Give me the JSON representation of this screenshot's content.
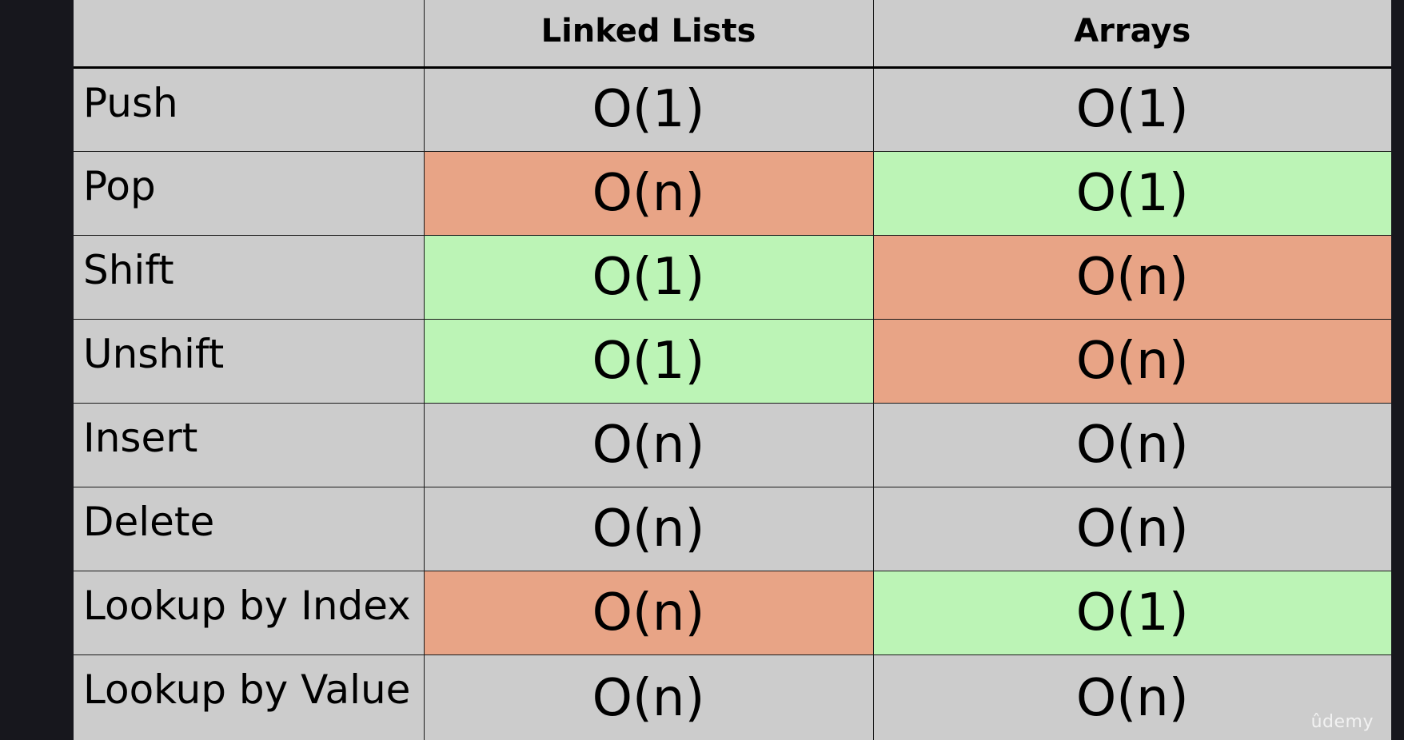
{
  "table": {
    "headers": [
      "",
      "Linked Lists",
      "Arrays"
    ],
    "rows": [
      {
        "operation": "Push",
        "linked_lists": "O(1)",
        "arrays": "O(1)",
        "ll_status": "neutral",
        "arr_status": "neutral"
      },
      {
        "operation": "Pop",
        "linked_lists": "O(n)",
        "arrays": "O(1)",
        "ll_status": "bad",
        "arr_status": "good"
      },
      {
        "operation": "Shift",
        "linked_lists": "O(1)",
        "arrays": "O(n)",
        "ll_status": "good",
        "arr_status": "bad"
      },
      {
        "operation": "Unshift",
        "linked_lists": "O(1)",
        "arrays": "O(n)",
        "ll_status": "good",
        "arr_status": "bad"
      },
      {
        "operation": "Insert",
        "linked_lists": "O(n)",
        "arrays": "O(n)",
        "ll_status": "neutral",
        "arr_status": "neutral"
      },
      {
        "operation": "Delete",
        "linked_lists": "O(n)",
        "arrays": "O(n)",
        "ll_status": "neutral",
        "arr_status": "neutral"
      },
      {
        "operation": "Lookup by Index",
        "linked_lists": "O(n)",
        "arrays": "O(1)",
        "ll_status": "bad",
        "arr_status": "good"
      },
      {
        "operation": "Lookup by Value",
        "linked_lists": "O(n)",
        "arrays": "O(n)",
        "ll_status": "neutral",
        "arr_status": "neutral"
      }
    ]
  },
  "colors": {
    "good": "#bcf4b6",
    "bad": "#e8a486",
    "neutral": "#cccccc",
    "background": "#17171d"
  },
  "watermark": "ûdemy"
}
